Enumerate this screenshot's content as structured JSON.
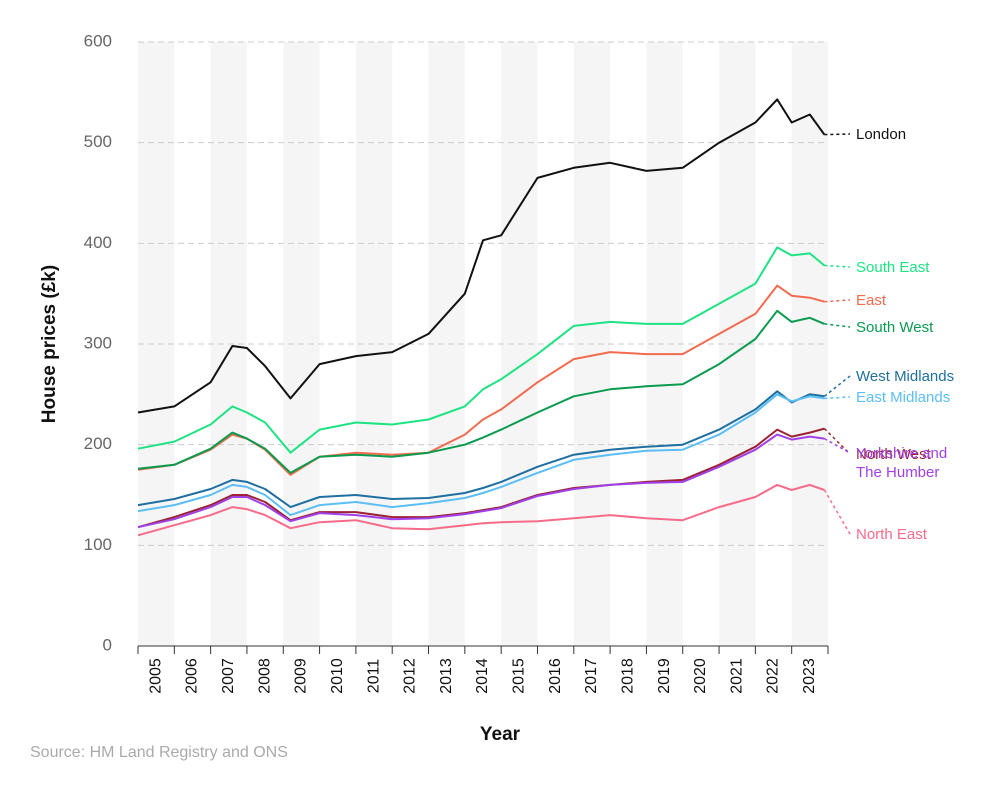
{
  "chart_data": {
    "type": "line",
    "y_label": "House prices (£k)",
    "x_label": "Year",
    "source": "Source: HM Land Registry and ONS",
    "x": [
      2005,
      2006,
      2007,
      2007.6,
      2008,
      2008.5,
      2009.2,
      2010,
      2011,
      2012,
      2013,
      2014,
      2014.5,
      2015,
      2016,
      2017,
      2018,
      2019,
      2020,
      2021,
      2022,
      2022.6,
      2023,
      2023.5,
      2023.9
    ],
    "xlim": [
      2005,
      2024
    ],
    "xticks": [
      2005,
      2006,
      2007,
      2008,
      2009,
      2010,
      2011,
      2012,
      2013,
      2014,
      2015,
      2016,
      2017,
      2018,
      2019,
      2020,
      2021,
      2022,
      2023
    ],
    "ylim": [
      0,
      600
    ],
    "yticks": [
      0,
      100,
      200,
      300,
      400,
      500,
      600
    ],
    "grid": true,
    "series": [
      {
        "name": "London",
        "color": "#111111",
        "values": [
          232,
          238,
          262,
          298,
          296,
          278,
          246,
          280,
          288,
          292,
          310,
          350,
          403,
          408,
          465,
          475,
          480,
          472,
          475,
          500,
          520,
          543,
          520,
          528,
          508
        ]
      },
      {
        "name": "South East",
        "color": "#1ee383",
        "values": [
          196,
          203,
          220,
          238,
          232,
          222,
          192,
          215,
          222,
          220,
          225,
          238,
          255,
          265,
          290,
          318,
          322,
          320,
          320,
          340,
          360,
          396,
          388,
          390,
          378
        ]
      },
      {
        "name": "East",
        "color": "#f26b4f",
        "values": [
          175,
          180,
          195,
          210,
          206,
          195,
          170,
          188,
          192,
          190,
          192,
          210,
          225,
          235,
          262,
          285,
          292,
          290,
          290,
          310,
          330,
          358,
          348,
          346,
          342
        ]
      },
      {
        "name": "South West",
        "color": "#0a9b4f",
        "values": [
          176,
          180,
          196,
          212,
          206,
          196,
          172,
          188,
          190,
          188,
          192,
          200,
          207,
          215,
          232,
          248,
          255,
          258,
          260,
          280,
          305,
          333,
          322,
          326,
          320
        ]
      },
      {
        "name": "West Midlands",
        "color": "#1f6fa0",
        "values": [
          140,
          146,
          156,
          165,
          163,
          156,
          138,
          148,
          150,
          146,
          147,
          152,
          157,
          163,
          178,
          190,
          195,
          198,
          200,
          215,
          235,
          253,
          242,
          250,
          248
        ]
      },
      {
        "name": "East Midlands",
        "color": "#5bbef5",
        "values": [
          134,
          140,
          150,
          160,
          158,
          150,
          130,
          140,
          143,
          138,
          142,
          147,
          152,
          158,
          172,
          185,
          190,
          194,
          195,
          210,
          232,
          250,
          243,
          248,
          246
        ]
      },
      {
        "name": "North West",
        "color": "#9b2335",
        "values": [
          118,
          128,
          140,
          150,
          150,
          143,
          125,
          133,
          133,
          128,
          128,
          132,
          135,
          138,
          150,
          157,
          160,
          163,
          165,
          180,
          198,
          215,
          208,
          212,
          216
        ]
      },
      {
        "name": "Yorkshire and The Humber",
        "color": "#a040e8",
        "values": [
          118,
          126,
          138,
          148,
          148,
          140,
          124,
          132,
          130,
          126,
          127,
          131,
          134,
          137,
          149,
          156,
          160,
          162,
          163,
          178,
          195,
          210,
          205,
          208,
          206
        ]
      },
      {
        "name": "North East",
        "color": "#f76b8a",
        "values": [
          110,
          120,
          130,
          138,
          136,
          130,
          117,
          123,
          125,
          117,
          116,
          120,
          122,
          123,
          124,
          127,
          130,
          127,
          125,
          138,
          148,
          160,
          155,
          160,
          155
        ]
      }
    ]
  }
}
